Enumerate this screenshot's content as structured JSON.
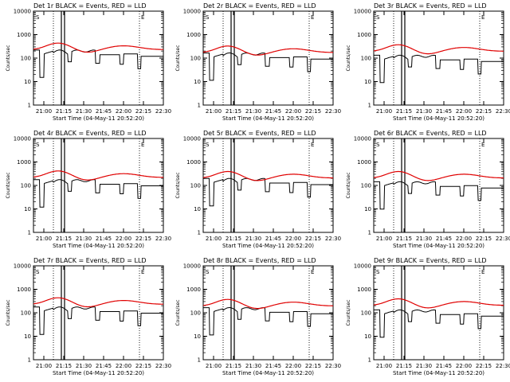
{
  "chart_data": [
    {
      "type": "line",
      "title": "Det 1r BLACK = Events, RED = LLD",
      "xlabel": "Start Time (04-May-11 20:52:20)",
      "ylabel": "Counts/sec",
      "yscale": "log",
      "ylim": [
        1,
        10000
      ],
      "xlim": [
        20.87,
        22.5
      ],
      "x_ticks": [
        21.0,
        21.25,
        21.5,
        21.75,
        22.0,
        22.25,
        22.5
      ],
      "x_tick_labels": [
        "21:00",
        "21:15",
        "21:30",
        "21:45",
        "22:00",
        "22:15",
        "22:30"
      ],
      "y_ticks": [
        1,
        10,
        100,
        1000,
        10000
      ],
      "y_tick_labels": [
        "1",
        "10",
        "100",
        "1000",
        "10000"
      ],
      "markers": [
        {
          "x": 21.12,
          "style": "dotted"
        },
        {
          "x": 21.22,
          "style": "solid"
        },
        {
          "x": 21.26,
          "style": "solid"
        },
        {
          "x": 22.2,
          "style": "dotted"
        }
      ],
      "marker_labels": [
        "S",
        "E"
      ],
      "black_level": 1.0,
      "red_level": 1.0,
      "series": []
    },
    {
      "type": "line",
      "title": "Det 2r BLACK = Events, RED = LLD",
      "xlabel": "Start Time (04-May-11 20:52:20)",
      "ylabel": "Counts/sec",
      "yscale": "log",
      "ylim": [
        1,
        10000
      ],
      "xlim": [
        20.87,
        22.5
      ],
      "x_ticks": [
        21.0,
        21.25,
        21.5,
        21.75,
        22.0,
        22.25,
        22.5
      ],
      "x_tick_labels": [
        "21:00",
        "21:15",
        "21:30",
        "21:45",
        "22:00",
        "22:15",
        "22:30"
      ],
      "y_ticks": [
        1,
        10,
        100,
        1000,
        10000
      ],
      "y_tick_labels": [
        "1",
        "10",
        "100",
        "1000",
        "10000"
      ],
      "markers": [
        {
          "x": 21.12,
          "style": "dotted"
        },
        {
          "x": 21.22,
          "style": "solid"
        },
        {
          "x": 21.26,
          "style": "solid"
        },
        {
          "x": 22.2,
          "style": "dotted"
        }
      ],
      "marker_labels": [
        "S",
        "E"
      ],
      "black_level": 0.75,
      "red_level": 0.75,
      "series": []
    },
    {
      "type": "line",
      "title": "Det 3r BLACK = Events, RED = LLD",
      "xlabel": "Start Time (04-May-11 20:52:20)",
      "ylabel": "Counts/sec",
      "yscale": "log",
      "ylim": [
        1,
        10000
      ],
      "xlim": [
        20.87,
        22.5
      ],
      "x_ticks": [
        21.0,
        21.25,
        21.5,
        21.75,
        22.0,
        22.25,
        22.5
      ],
      "x_tick_labels": [
        "21:00",
        "21:15",
        "21:30",
        "21:45",
        "22:00",
        "22:15",
        "22:30"
      ],
      "y_ticks": [
        1,
        10,
        100,
        1000,
        10000
      ],
      "y_tick_labels": [
        "1",
        "10",
        "100",
        "1000",
        "10000"
      ],
      "markers": [
        {
          "x": 21.12,
          "style": "dotted"
        },
        {
          "x": 21.22,
          "style": "solid"
        },
        {
          "x": 21.26,
          "style": "solid"
        },
        {
          "x": 22.2,
          "style": "dotted"
        }
      ],
      "marker_labels": [
        "S",
        "E"
      ],
      "black_level": 0.6,
      "red_level": 0.85,
      "series": []
    },
    {
      "type": "line",
      "title": "Det 4r BLACK = Events, RED = LLD",
      "xlabel": "Start Time (04-May-11 20:52:20)",
      "ylabel": "Counts/sec",
      "yscale": "log",
      "ylim": [
        1,
        10000
      ],
      "xlim": [
        20.87,
        22.5
      ],
      "x_ticks": [
        21.0,
        21.25,
        21.5,
        21.75,
        22.0,
        22.25,
        22.5
      ],
      "x_tick_labels": [
        "21:00",
        "21:15",
        "21:30",
        "21:45",
        "22:00",
        "22:15",
        "22:30"
      ],
      "y_ticks": [
        1,
        10,
        100,
        1000,
        10000
      ],
      "y_tick_labels": [
        "1",
        "10",
        "100",
        "1000",
        "10000"
      ],
      "markers": [
        {
          "x": 21.12,
          "style": "dotted"
        },
        {
          "x": 21.22,
          "style": "solid"
        },
        {
          "x": 21.26,
          "style": "solid"
        },
        {
          "x": 22.2,
          "style": "dotted"
        }
      ],
      "marker_labels": [
        "S",
        "E"
      ],
      "black_level": 0.8,
      "red_level": 0.95,
      "series": []
    },
    {
      "type": "line",
      "title": "Det 5r BLACK = Events, RED = LLD",
      "xlabel": "Start Time (04-May-11 20:52:20)",
      "ylabel": "Counts/sec",
      "yscale": "log",
      "ylim": [
        1,
        10000
      ],
      "xlim": [
        20.87,
        22.5
      ],
      "x_ticks": [
        21.0,
        21.25,
        21.5,
        21.75,
        22.0,
        22.25,
        22.5
      ],
      "x_tick_labels": [
        "21:00",
        "21:15",
        "21:30",
        "21:45",
        "22:00",
        "22:15",
        "22:30"
      ],
      "y_ticks": [
        1,
        10,
        100,
        1000,
        10000
      ],
      "y_tick_labels": [
        "1",
        "10",
        "100",
        "1000",
        "10000"
      ],
      "markers": [
        {
          "x": 21.12,
          "style": "dotted"
        },
        {
          "x": 21.22,
          "style": "solid"
        },
        {
          "x": 21.26,
          "style": "solid"
        },
        {
          "x": 22.2,
          "style": "dotted"
        }
      ],
      "marker_labels": [
        "S",
        "E"
      ],
      "black_level": 0.9,
      "red_level": 0.9,
      "series": []
    },
    {
      "type": "line",
      "title": "Det 6r BLACK = Events, RED = LLD",
      "xlabel": "Start Time (04-May-11 20:52:20)",
      "ylabel": "Counts/sec",
      "yscale": "log",
      "ylim": [
        1,
        10000
      ],
      "xlim": [
        20.87,
        22.5
      ],
      "x_ticks": [
        21.0,
        21.25,
        21.5,
        21.75,
        22.0,
        22.25,
        22.5
      ],
      "x_tick_labels": [
        "21:00",
        "21:15",
        "21:30",
        "21:45",
        "22:00",
        "22:15",
        "22:30"
      ],
      "y_ticks": [
        1,
        10,
        100,
        1000,
        10000
      ],
      "y_tick_labels": [
        "1",
        "10",
        "100",
        "1000",
        "10000"
      ],
      "markers": [
        {
          "x": 21.12,
          "style": "dotted"
        },
        {
          "x": 21.22,
          "style": "solid"
        },
        {
          "x": 21.26,
          "style": "solid"
        },
        {
          "x": 22.2,
          "style": "dotted"
        }
      ],
      "marker_labels": [
        "S",
        "E"
      ],
      "black_level": 0.65,
      "red_level": 0.9,
      "series": []
    },
    {
      "type": "line",
      "title": "Det 7r BLACK = Events, RED = LLD",
      "xlabel": "Start Time (04-May-11 20:52:20)",
      "ylabel": "Counts/sec",
      "yscale": "log",
      "ylim": [
        1,
        10000
      ],
      "xlim": [
        20.87,
        22.5
      ],
      "x_ticks": [
        21.0,
        21.25,
        21.5,
        21.75,
        22.0,
        22.25,
        22.5
      ],
      "x_tick_labels": [
        "21:00",
        "21:15",
        "21:30",
        "21:45",
        "22:00",
        "22:15",
        "22:30"
      ],
      "y_ticks": [
        1,
        10,
        100,
        1000,
        10000
      ],
      "y_tick_labels": [
        "1",
        "10",
        "100",
        "1000",
        "10000"
      ],
      "markers": [
        {
          "x": 21.12,
          "style": "dotted"
        },
        {
          "x": 21.22,
          "style": "solid"
        },
        {
          "x": 21.26,
          "style": "solid"
        },
        {
          "x": 22.2,
          "style": "dotted"
        }
      ],
      "marker_labels": [
        "S",
        "E"
      ],
      "black_level": 0.8,
      "red_level": 1.0,
      "series": []
    },
    {
      "type": "line",
      "title": "Det 8r BLACK = Events, RED = LLD",
      "xlabel": "Start Time (04-May-11 20:52:20)",
      "ylabel": "Counts/sec",
      "yscale": "log",
      "ylim": [
        1,
        10000
      ],
      "xlim": [
        20.87,
        22.5
      ],
      "x_ticks": [
        21.0,
        21.25,
        21.5,
        21.75,
        22.0,
        22.25,
        22.5
      ],
      "x_tick_labels": [
        "21:00",
        "21:15",
        "21:30",
        "21:45",
        "22:00",
        "22:15",
        "22:30"
      ],
      "y_ticks": [
        1,
        10,
        100,
        1000,
        10000
      ],
      "y_tick_labels": [
        "1",
        "10",
        "100",
        "1000",
        "10000"
      ],
      "markers": [
        {
          "x": 21.12,
          "style": "dotted"
        },
        {
          "x": 21.22,
          "style": "solid"
        },
        {
          "x": 21.26,
          "style": "solid"
        },
        {
          "x": 22.2,
          "style": "dotted"
        }
      ],
      "marker_labels": [
        "S",
        "E"
      ],
      "black_level": 0.75,
      "red_level": 0.85,
      "series": []
    },
    {
      "type": "line",
      "title": "Det 9r BLACK = Events, RED = LLD",
      "xlabel": "Start Time (04-May-11 20:52:20)",
      "ylabel": "Counts/sec",
      "yscale": "log",
      "ylim": [
        1,
        10000
      ],
      "xlim": [
        20.87,
        22.5
      ],
      "x_ticks": [
        21.0,
        21.25,
        21.5,
        21.75,
        22.0,
        22.25,
        22.5
      ],
      "x_tick_labels": [
        "21:00",
        "21:15",
        "21:30",
        "21:45",
        "22:00",
        "22:15",
        "22:30"
      ],
      "y_ticks": [
        1,
        10,
        100,
        1000,
        10000
      ],
      "y_tick_labels": [
        "1",
        "10",
        "100",
        "1000",
        "10000"
      ],
      "markers": [
        {
          "x": 21.12,
          "style": "dotted"
        },
        {
          "x": 21.22,
          "style": "solid"
        },
        {
          "x": 21.26,
          "style": "solid"
        },
        {
          "x": 22.2,
          "style": "dotted"
        }
      ],
      "marker_labels": [
        "S",
        "E"
      ],
      "black_level": 0.6,
      "red_level": 0.9,
      "series": []
    }
  ],
  "colors": {
    "events": "#000000",
    "lld": "#e00000",
    "axes": "#000000"
  }
}
